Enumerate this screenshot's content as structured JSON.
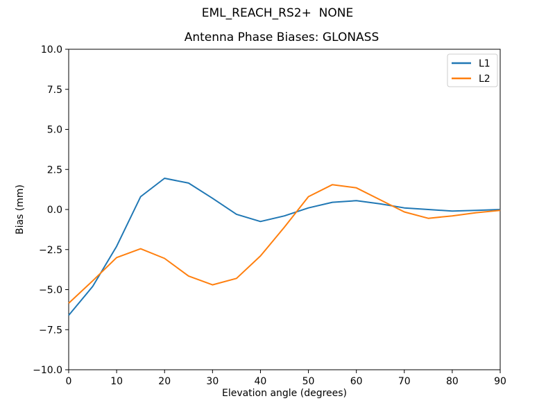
{
  "figure": {
    "background": "#ffffff",
    "spine_color": "#000000"
  },
  "chart_data": {
    "type": "line",
    "title": "EML_REACH_RS2+  NONE",
    "subtitle": "Antenna Phase Biases: GLONASS",
    "xlabel": "Elevation angle (degrees)",
    "ylabel": "Bias (mm)",
    "xlim": [
      0,
      90
    ],
    "ylim": [
      -10,
      10
    ],
    "xticks": [
      0,
      10,
      20,
      30,
      40,
      50,
      60,
      70,
      80,
      90
    ],
    "xtick_labels": [
      "0",
      "10",
      "20",
      "30",
      "40",
      "50",
      "60",
      "70",
      "80",
      "90"
    ],
    "yticks": [
      10,
      7.5,
      5,
      2.5,
      0,
      -2.5,
      -5,
      -7.5,
      -10
    ],
    "ytick_labels": [
      "10.0",
      "7.5",
      "5.0",
      "2.5",
      "0.0",
      "−2.5",
      "−5.0",
      "−7.5",
      "−10.0"
    ],
    "grid": false,
    "legend": {
      "position": "upper right",
      "entries": [
        "L1",
        "L2"
      ]
    },
    "x": [
      0,
      5,
      10,
      15,
      20,
      25,
      30,
      35,
      40,
      45,
      50,
      55,
      60,
      65,
      70,
      75,
      80,
      85,
      90
    ],
    "series": [
      {
        "name": "L1",
        "color": "#1f77b4",
        "values": [
          -6.6,
          -4.8,
          -2.3,
          0.8,
          1.95,
          1.65,
          0.7,
          -0.3,
          -0.75,
          -0.4,
          0.1,
          0.45,
          0.55,
          0.35,
          0.1,
          0.0,
          -0.1,
          -0.05,
          0.0
        ]
      },
      {
        "name": "L2",
        "color": "#ff7f0e",
        "values": [
          -5.85,
          -4.45,
          -3.0,
          -2.45,
          -3.05,
          -4.15,
          -4.7,
          -4.3,
          -2.9,
          -1.1,
          0.8,
          1.55,
          1.35,
          0.6,
          -0.15,
          -0.55,
          -0.4,
          -0.2,
          -0.05
        ]
      }
    ]
  }
}
